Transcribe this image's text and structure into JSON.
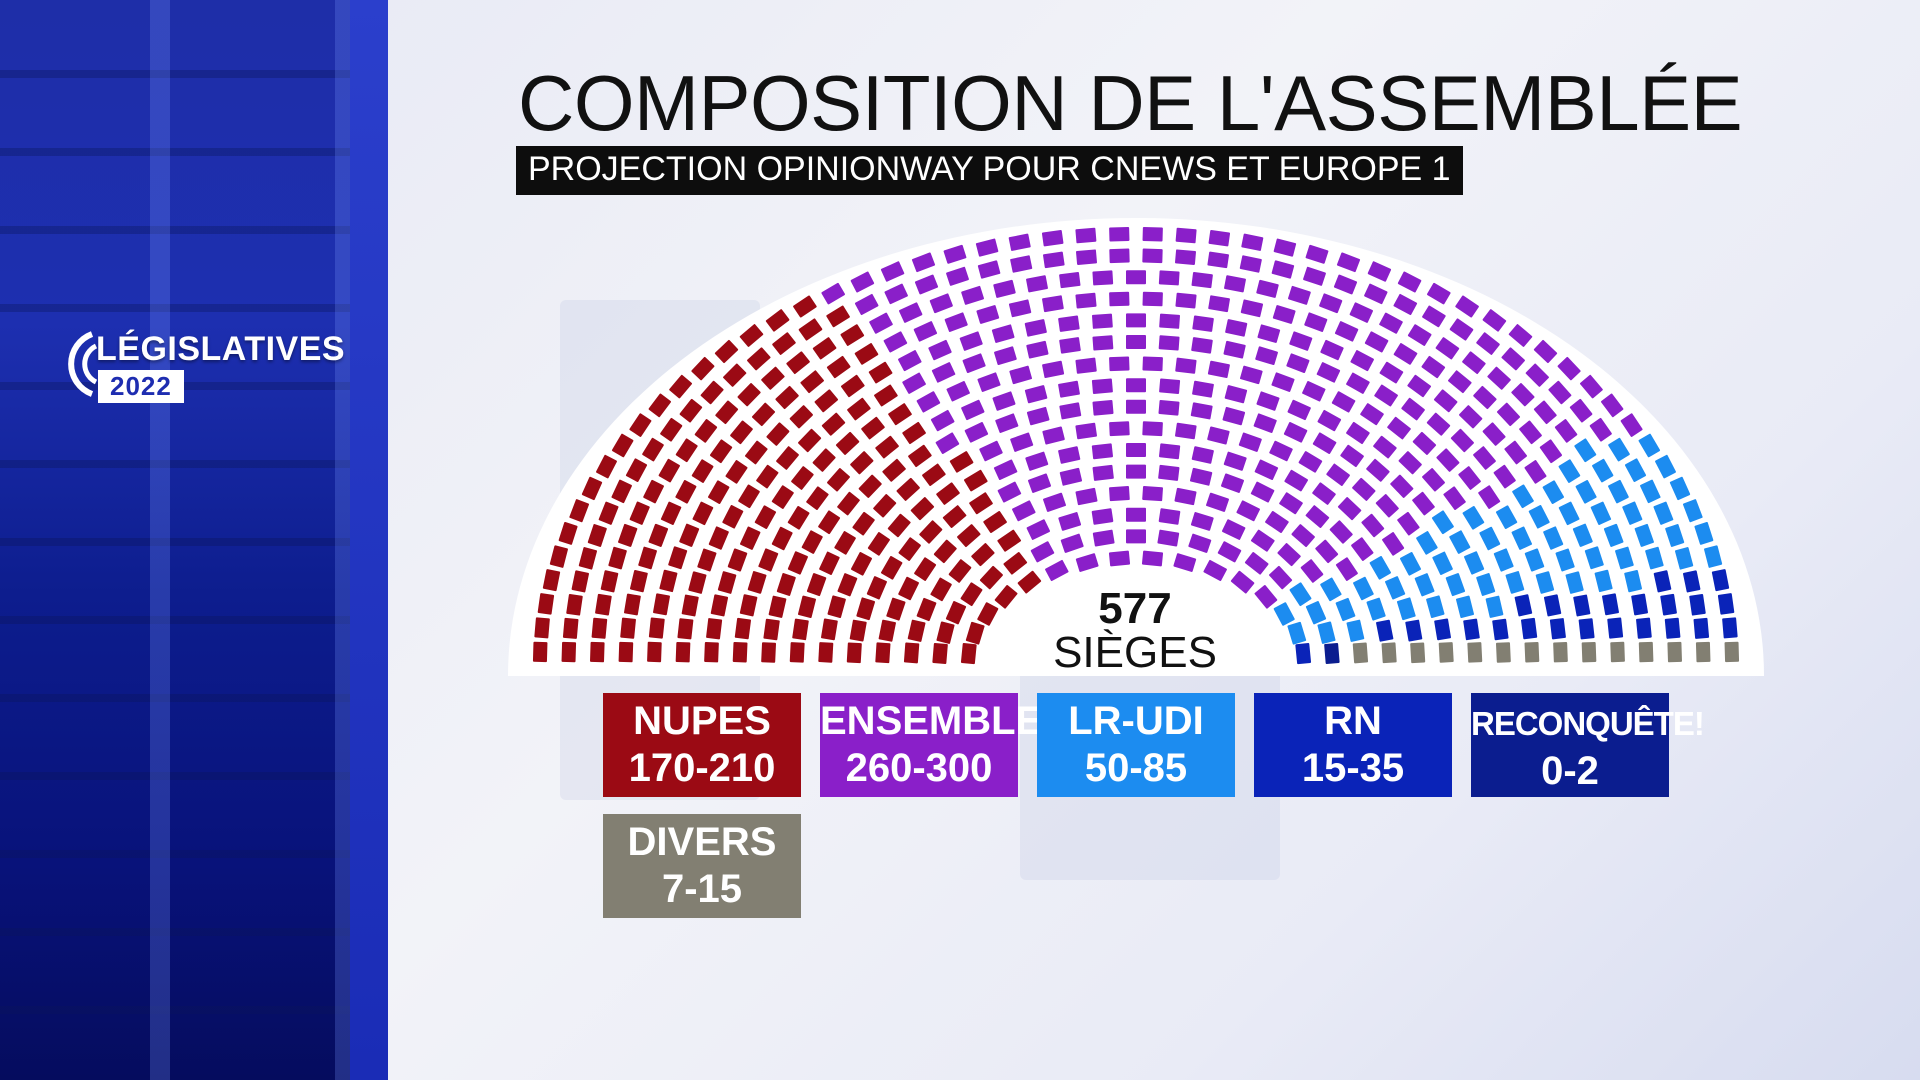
{
  "header": {
    "title": "COMPOSITION DE L'ASSEMBLÉE",
    "subtitle": "PROJECTION OPINIONWAY POUR CNEWS ET EUROPE 1"
  },
  "logo": {
    "word": "LÉGISLATIVES",
    "year": "2022"
  },
  "chart_data": {
    "type": "hemicycle",
    "title": "COMPOSITION DE L'ASSEMBLÉE",
    "subtitle": "PROJECTION OPINIONWAY POUR CNEWS ET EUROPE 1",
    "total_seats": 577,
    "total_value": "577",
    "total_label": "SIÈGES",
    "rows": 16,
    "series": [
      {
        "name": "NUPES",
        "range": "170-210",
        "seats": 190,
        "color": "#9b0a14"
      },
      {
        "name": "ENSEMBLE",
        "range": "260-300",
        "seats": 280,
        "color": "#8a1fc9"
      },
      {
        "name": "LR-UDI",
        "range": "50-85",
        "seats": 67,
        "color": "#1c8cf0"
      },
      {
        "name": "RN",
        "range": "15-35",
        "seats": 25,
        "color": "#0a23b8"
      },
      {
        "name": "RECONQUÊTE!",
        "range": "0-2",
        "seats": 1,
        "color": "#0b1d8f"
      },
      {
        "name": "DIVERS",
        "range": "7-15",
        "seats": 14,
        "color": "#827f72"
      }
    ]
  }
}
